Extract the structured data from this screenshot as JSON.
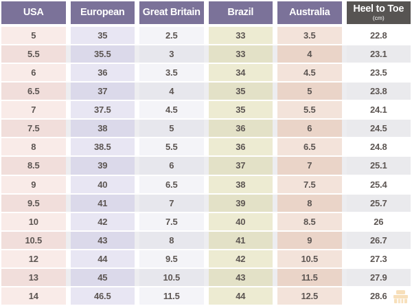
{
  "colors": {
    "header_purple": "#7b7299",
    "header_dark": "#575452",
    "header_text": "#ffffff",
    "cell_text": "#5c5552",
    "even_row_stripe": "#ededf0",
    "watermark_orange": "#e9a43c"
  },
  "chart_data": {
    "type": "table",
    "columns": [
      {
        "key": "usa",
        "label": "USA",
        "header_bg": "#7b7299",
        "odd": "#f9ebe8",
        "even": "#f1dedb"
      },
      {
        "key": "european",
        "label": "European",
        "header_bg": "#7b7299",
        "odd": "#e8e6f3",
        "even": "#dbd9ea"
      },
      {
        "key": "great-britain",
        "label": "Great Britain",
        "header_bg": "#7b7299",
        "odd": "#f4f4f8",
        "even": "#e7e7ed"
      },
      {
        "key": "brazil",
        "label": "Brazil",
        "header_bg": "#7b7299",
        "odd": "#edebd2",
        "even": "#e3e1c7"
      },
      {
        "key": "australia",
        "label": "Australia",
        "header_bg": "#7b7299",
        "odd": "#f3e3da",
        "even": "#ead4c8"
      },
      {
        "key": "heel-to-toe",
        "label": "Heel to Toe",
        "sublabel": "(cm)",
        "header_bg": "#575452",
        "odd": "#ffffff",
        "even": "#eaeaed"
      }
    ],
    "rows": [
      [
        "5",
        "35",
        "2.5",
        "33",
        "3.5",
        "22.8"
      ],
      [
        "5.5",
        "35.5",
        "3",
        "33",
        "4",
        "23.1"
      ],
      [
        "6",
        "36",
        "3.5",
        "34",
        "4.5",
        "23.5"
      ],
      [
        "6.5",
        "37",
        "4",
        "35",
        "5",
        "23.8"
      ],
      [
        "7",
        "37.5",
        "4.5",
        "35",
        "5.5",
        "24.1"
      ],
      [
        "7.5",
        "38",
        "5",
        "36",
        "6",
        "24.5"
      ],
      [
        "8",
        "38.5",
        "5.5",
        "36",
        "6.5",
        "24.8"
      ],
      [
        "8.5",
        "39",
        "6",
        "37",
        "7",
        "25.1"
      ],
      [
        "9",
        "40",
        "6.5",
        "38",
        "7.5",
        "25.4"
      ],
      [
        "9.5",
        "41",
        "7",
        "39",
        "8",
        "25.7"
      ],
      [
        "10",
        "42",
        "7.5",
        "40",
        "8.5",
        "26"
      ],
      [
        "10.5",
        "43",
        "8",
        "41",
        "9",
        "26.7"
      ],
      [
        "12",
        "44",
        "9.5",
        "42",
        "10.5",
        "27.3"
      ],
      [
        "13",
        "45",
        "10.5",
        "43",
        "11.5",
        "27.9"
      ],
      [
        "14",
        "46.5",
        "11.5",
        "44",
        "12.5",
        "28.6"
      ]
    ]
  }
}
